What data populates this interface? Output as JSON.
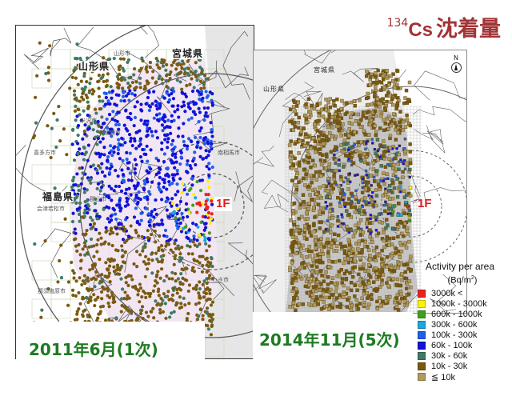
{
  "title": {
    "isotope_mass": "134",
    "element": "Cs",
    "text": "沈着量",
    "color": "#a23336"
  },
  "maps": {
    "left": {
      "survey_label": "2011年6月(1次)",
      "plant_label": "1F",
      "prefectures": [
        "山形県",
        "宮城県",
        "福島県"
      ],
      "cities": [
        "山形市",
        "米沢市",
        "喜多方市",
        "福島市",
        "会津若松市",
        "郡山市",
        "南相馬市",
        "いわき市",
        "那須塩原市"
      ]
    },
    "right": {
      "survey_label": "2014年11月(5次)",
      "plant_label": "1F",
      "prefectures": [
        "宮城県",
        "山形県"
      ],
      "north_label": "N"
    }
  },
  "legend": {
    "title": "Activity per area",
    "unit_prefix": "(Bq/m",
    "unit_exp": "2",
    "unit_suffix": ")",
    "items": [
      {
        "label": "3000k <",
        "color": "#e8231f"
      },
      {
        "label": "1000k - 3000k",
        "color": "#fff200"
      },
      {
        "label": "600k - 1000k",
        "color": "#3ea018"
      },
      {
        "label": "300k - 600k",
        "color": "#1aa7e0"
      },
      {
        "label": "100k - 300k",
        "color": "#1f5fe8"
      },
      {
        "label": "60k - 100k",
        "color": "#1212d8"
      },
      {
        "label": "30k - 60k",
        "color": "#3f7a66"
      },
      {
        "label": "10k - 30k",
        "color": "#7a5a12"
      },
      {
        "label": "≦ 10k",
        "color": "#b09a5e"
      }
    ]
  }
}
